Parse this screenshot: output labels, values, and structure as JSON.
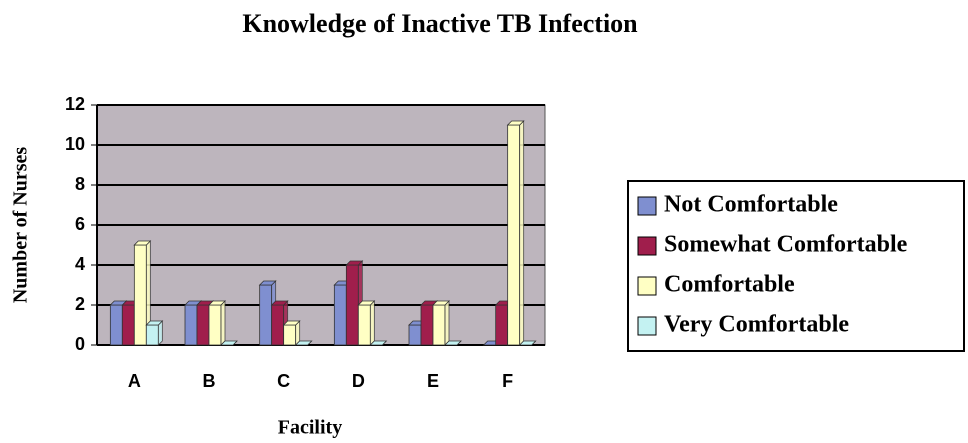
{
  "chart_data": {
    "type": "bar",
    "title": "Knowledge of Inactive TB Infection",
    "x_label": "Facility",
    "y_label": "Number of Nurses",
    "categories": [
      "A",
      "B",
      "C",
      "D",
      "E",
      "F"
    ],
    "series": [
      {
        "name": "Not Comfortable",
        "color": "#7f8fd0",
        "values": [
          2,
          2,
          3,
          3,
          1,
          0
        ]
      },
      {
        "name": "Somewhat Comfortable",
        "color": "#a01e4c",
        "values": [
          2,
          2,
          2,
          4,
          2,
          2
        ]
      },
      {
        "name": "Comfortable",
        "color": "#ffffc4",
        "values": [
          5,
          2,
          1,
          2,
          2,
          11
        ]
      },
      {
        "name": "Very Comfortable",
        "color": "#c4f2f2",
        "values": [
          1,
          0,
          0,
          0,
          0,
          0
        ]
      }
    ],
    "ylim": [
      0,
      12
    ],
    "yticks": [
      0,
      2,
      4,
      6,
      8,
      10,
      12
    ],
    "grid": true,
    "legend": "right"
  }
}
